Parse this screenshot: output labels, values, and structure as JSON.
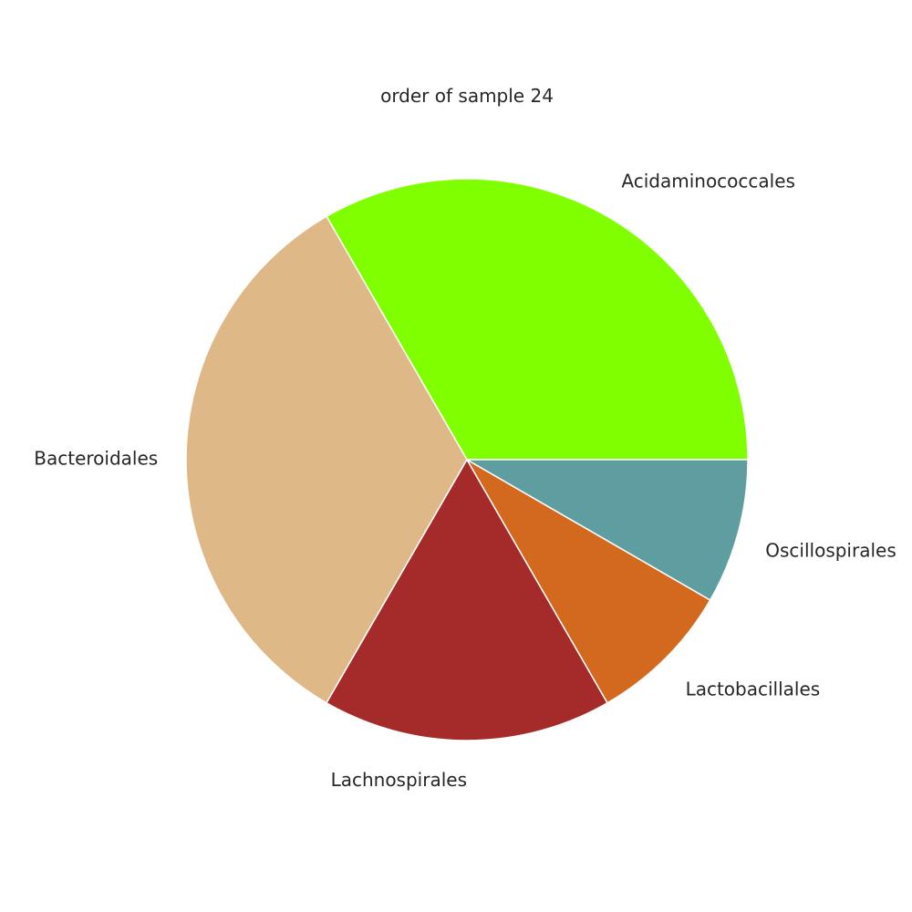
{
  "chart_data": {
    "type": "pie",
    "title": "order of sample 24",
    "slices": [
      {
        "label": "Acidaminococcales",
        "value": 4,
        "color": "#7fff00"
      },
      {
        "label": "Bacteroidales",
        "value": 4,
        "color": "#deb887"
      },
      {
        "label": "Lachnospirales",
        "value": 2,
        "color": "#a52a2a"
      },
      {
        "label": "Lactobacillales",
        "value": 1,
        "color": "#d2691e"
      },
      {
        "label": "Oscillospirales",
        "value": 1,
        "color": "#5f9ea0"
      }
    ],
    "start_angle_deg": 0,
    "direction": "counterclockwise",
    "slice_edge_color": "#ffffff"
  }
}
